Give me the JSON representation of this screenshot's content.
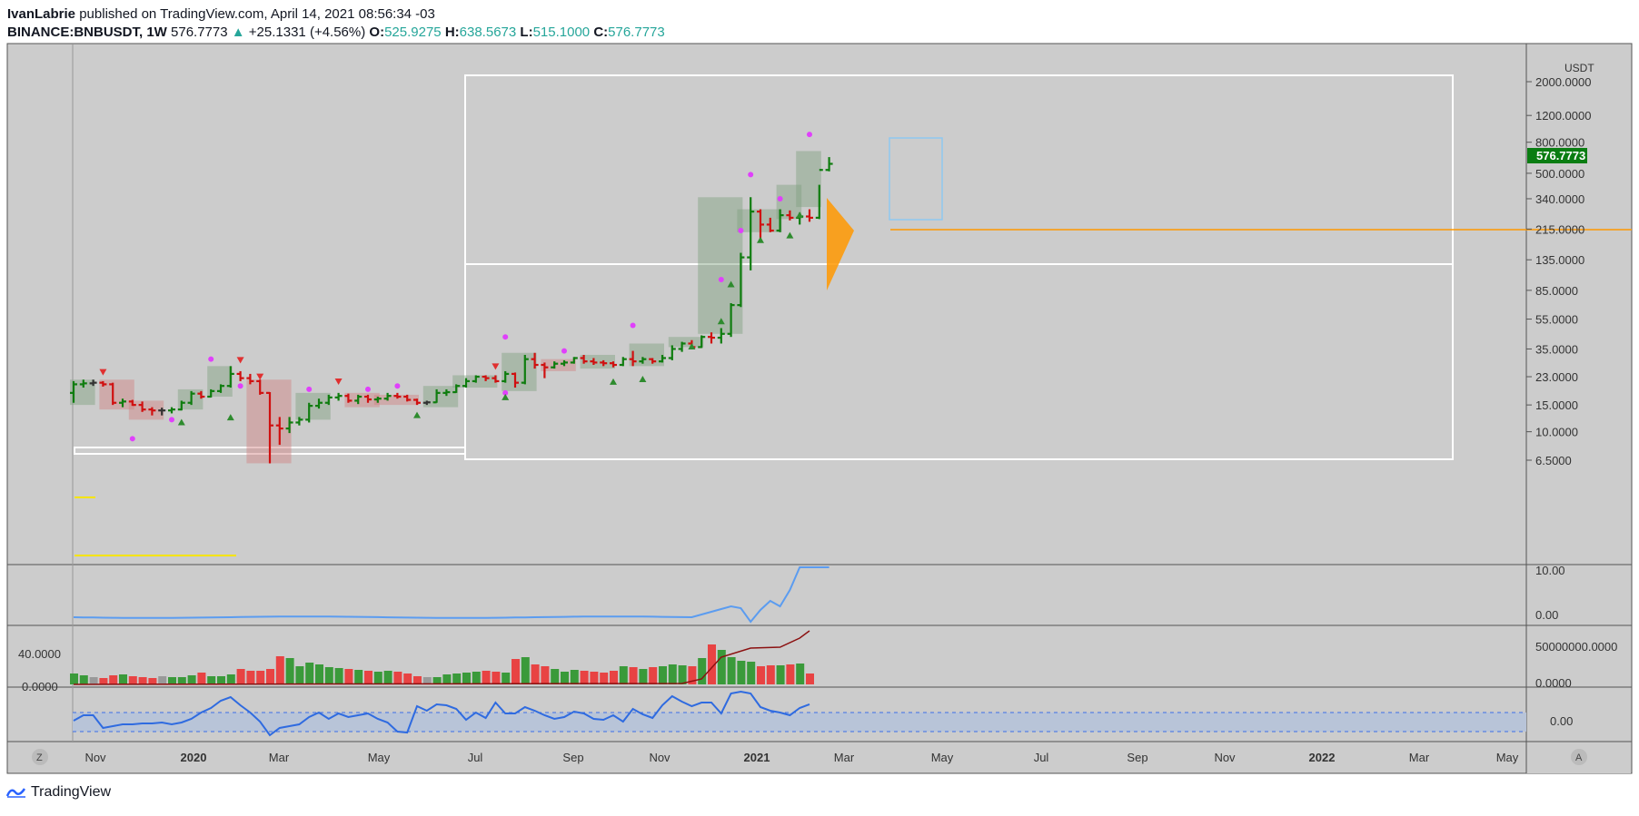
{
  "header": {
    "author": "IvanLabrie",
    "published_text": "published on TradingView.com, April 14, 2021 08:56:34 -03",
    "symbol": "BINANCE:BNBUSDT, 1W",
    "price": "576.7773",
    "change_icon": "up-triangle-icon",
    "change": "+25.1331 (+4.56%)",
    "o_label": "O:",
    "o_value": "525.9275",
    "h_label": "H:",
    "h_value": "638.5673",
    "l_label": "L:",
    "l_value": "515.1000",
    "c_label": "C:",
    "c_value": "576.7773"
  },
  "colors": {
    "up": "#0f7d0f",
    "down": "#d01010",
    "neutral": "#333333",
    "background": "#cccccc",
    "accent": "#ff9800",
    "indicator_line": "#5b9cf0",
    "dot": "#e040fb",
    "badge": "#0a7d12"
  },
  "price_axis": {
    "currency": "USDT",
    "labels": [
      "2000.0000",
      "1200.0000",
      "800.0000",
      "500.0000",
      "340.0000",
      "215.0000",
      "135.0000",
      "85.0000",
      "55.0000",
      "35.0000",
      "23.0000",
      "15.0000",
      "10.0000",
      "6.5000"
    ],
    "last_price": "576.7773"
  },
  "panes": {
    "pane1_labels": [
      "10.00",
      "0.00"
    ],
    "pane2_left_label": "40.0000",
    "pane2_left_label_2": "0.0000",
    "pane2_labels": [
      "50000000.0000",
      "0.0000"
    ],
    "pane3_labels": [
      "0.00"
    ]
  },
  "time_axis": {
    "labels": [
      "Nov",
      "2020",
      "Mar",
      "May",
      "Jul",
      "Sep",
      "Nov",
      "2021",
      "Mar",
      "May",
      "Jul",
      "Sep",
      "Nov",
      "2022",
      "Mar",
      "May"
    ],
    "left_button": "Z",
    "right_button": "A"
  },
  "footer": {
    "brand": "TradingView",
    "logo_icon": "tradingview-logo-icon"
  },
  "chart_data": {
    "type": "ohlc",
    "symbol": "BINANCE:BNBUSDT",
    "interval": "1W",
    "y_scale": "log",
    "ylim": [
      5.5,
      2300
    ],
    "time_range": [
      "2019-10-21",
      "2022-05-23"
    ],
    "ohlc_approx": [
      {
        "t": "2019-10-21",
        "o": 18.0,
        "h": 21.5,
        "l": 15.5,
        "c": 20.5
      },
      {
        "t": "2019-10-28",
        "o": 20.5,
        "h": 22.0,
        "l": 19.5,
        "c": 20.8
      },
      {
        "t": "2019-11-04",
        "o": 20.8,
        "h": 22.0,
        "l": 20.0,
        "c": 21.0
      },
      {
        "t": "2019-11-11",
        "o": 21.0,
        "h": 21.5,
        "l": 19.8,
        "c": 20.5
      },
      {
        "t": "2019-11-18",
        "o": 20.5,
        "h": 21.0,
        "l": 15.0,
        "c": 15.5
      },
      {
        "t": "2019-11-25",
        "o": 15.5,
        "h": 16.5,
        "l": 14.5,
        "c": 15.8
      },
      {
        "t": "2019-12-02",
        "o": 15.8,
        "h": 16.2,
        "l": 14.8,
        "c": 15.0
      },
      {
        "t": "2019-12-09",
        "o": 15.0,
        "h": 15.8,
        "l": 13.5,
        "c": 14.0
      },
      {
        "t": "2019-12-16",
        "o": 14.0,
        "h": 14.5,
        "l": 12.8,
        "c": 13.8
      },
      {
        "t": "2019-12-23",
        "o": 13.8,
        "h": 14.4,
        "l": 12.8,
        "c": 13.8
      },
      {
        "t": "2019-12-30",
        "o": 13.8,
        "h": 14.5,
        "l": 13.2,
        "c": 14.0
      },
      {
        "t": "2020-01-06",
        "o": 14.0,
        "h": 16.0,
        "l": 13.8,
        "c": 15.5
      },
      {
        "t": "2020-01-13",
        "o": 15.5,
        "h": 18.5,
        "l": 15.0,
        "c": 17.8
      },
      {
        "t": "2020-01-20",
        "o": 17.8,
        "h": 18.5,
        "l": 16.5,
        "c": 17.0
      },
      {
        "t": "2020-01-27",
        "o": 17.0,
        "h": 19.0,
        "l": 16.8,
        "c": 18.5
      },
      {
        "t": "2020-02-03",
        "o": 18.5,
        "h": 20.5,
        "l": 18.0,
        "c": 20.0
      },
      {
        "t": "2020-02-10",
        "o": 20.0,
        "h": 27.0,
        "l": 19.5,
        "c": 24.0
      },
      {
        "t": "2020-02-17",
        "o": 24.0,
        "h": 25.0,
        "l": 21.5,
        "c": 22.5
      },
      {
        "t": "2020-02-24",
        "o": 22.5,
        "h": 24.0,
        "l": 20.5,
        "c": 21.5
      },
      {
        "t": "2020-03-02",
        "o": 21.5,
        "h": 22.0,
        "l": 17.5,
        "c": 18.0
      },
      {
        "t": "2020-03-09",
        "o": 18.0,
        "h": 18.2,
        "l": 6.2,
        "c": 11.0
      },
      {
        "t": "2020-03-16",
        "o": 11.0,
        "h": 12.5,
        "l": 8.2,
        "c": 10.5
      },
      {
        "t": "2020-03-23",
        "o": 10.5,
        "h": 12.5,
        "l": 9.8,
        "c": 11.5
      },
      {
        "t": "2020-03-30",
        "o": 11.5,
        "h": 12.5,
        "l": 11.0,
        "c": 12.0
      },
      {
        "t": "2020-04-06",
        "o": 12.0,
        "h": 15.5,
        "l": 11.5,
        "c": 14.8
      },
      {
        "t": "2020-04-13",
        "o": 14.8,
        "h": 16.5,
        "l": 14.2,
        "c": 15.5
      },
      {
        "t": "2020-04-20",
        "o": 15.5,
        "h": 17.5,
        "l": 15.0,
        "c": 16.8
      },
      {
        "t": "2020-04-27",
        "o": 16.8,
        "h": 18.0,
        "l": 16.0,
        "c": 17.2
      },
      {
        "t": "2020-05-04",
        "o": 17.2,
        "h": 17.8,
        "l": 15.5,
        "c": 16.0
      },
      {
        "t": "2020-05-11",
        "o": 16.0,
        "h": 17.5,
        "l": 15.2,
        "c": 17.0
      },
      {
        "t": "2020-05-18",
        "o": 17.0,
        "h": 17.5,
        "l": 15.5,
        "c": 16.3
      },
      {
        "t": "2020-05-25",
        "o": 16.3,
        "h": 17.0,
        "l": 15.5,
        "c": 16.5
      },
      {
        "t": "2020-06-01",
        "o": 16.5,
        "h": 18.0,
        "l": 16.0,
        "c": 17.2
      },
      {
        "t": "2020-06-08",
        "o": 17.2,
        "h": 18.0,
        "l": 16.5,
        "c": 17.0
      },
      {
        "t": "2020-06-15",
        "o": 17.0,
        "h": 17.5,
        "l": 15.8,
        "c": 16.2
      },
      {
        "t": "2020-06-22",
        "o": 16.2,
        "h": 16.5,
        "l": 15.0,
        "c": 15.5
      },
      {
        "t": "2020-06-29",
        "o": 15.5,
        "h": 16.0,
        "l": 15.0,
        "c": 15.6
      },
      {
        "t": "2020-07-06",
        "o": 15.6,
        "h": 19.0,
        "l": 15.5,
        "c": 18.0
      },
      {
        "t": "2020-07-13",
        "o": 18.0,
        "h": 19.0,
        "l": 17.2,
        "c": 18.2
      },
      {
        "t": "2020-07-20",
        "o": 18.2,
        "h": 20.5,
        "l": 18.0,
        "c": 20.0
      },
      {
        "t": "2020-07-27",
        "o": 20.0,
        "h": 22.5,
        "l": 19.5,
        "c": 21.5
      },
      {
        "t": "2020-08-03",
        "o": 21.5,
        "h": 23.5,
        "l": 21.0,
        "c": 23.0
      },
      {
        "t": "2020-08-10",
        "o": 23.0,
        "h": 23.5,
        "l": 21.5,
        "c": 22.5
      },
      {
        "t": "2020-08-17",
        "o": 22.5,
        "h": 23.5,
        "l": 21.0,
        "c": 21.5
      },
      {
        "t": "2020-08-24",
        "o": 21.5,
        "h": 25.0,
        "l": 21.0,
        "c": 24.0
      },
      {
        "t": "2020-08-31",
        "o": 24.0,
        "h": 24.5,
        "l": 19.5,
        "c": 21.0
      },
      {
        "t": "2020-09-07",
        "o": 21.0,
        "h": 32.0,
        "l": 20.5,
        "c": 30.0
      },
      {
        "t": "2020-09-14",
        "o": 30.0,
        "h": 33.0,
        "l": 26.0,
        "c": 27.5
      },
      {
        "t": "2020-09-21",
        "o": 27.5,
        "h": 28.5,
        "l": 22.5,
        "c": 26.5
      },
      {
        "t": "2020-09-28",
        "o": 26.5,
        "h": 29.0,
        "l": 26.0,
        "c": 28.0
      },
      {
        "t": "2020-10-05",
        "o": 28.0,
        "h": 29.5,
        "l": 27.0,
        "c": 28.5
      },
      {
        "t": "2020-10-12",
        "o": 28.5,
        "h": 31.0,
        "l": 28.0,
        "c": 30.5
      },
      {
        "t": "2020-10-19",
        "o": 30.5,
        "h": 32.0,
        "l": 28.0,
        "c": 29.0
      },
      {
        "t": "2020-10-26",
        "o": 29.0,
        "h": 30.5,
        "l": 27.5,
        "c": 28.5
      },
      {
        "t": "2020-11-02",
        "o": 28.5,
        "h": 29.5,
        "l": 27.0,
        "c": 28.2
      },
      {
        "t": "2020-11-09",
        "o": 28.2,
        "h": 29.0,
        "l": 26.5,
        "c": 27.5
      },
      {
        "t": "2020-11-16",
        "o": 27.5,
        "h": 31.0,
        "l": 27.0,
        "c": 30.0
      },
      {
        "t": "2020-11-23",
        "o": 30.0,
        "h": 34.0,
        "l": 27.0,
        "c": 29.0
      },
      {
        "t": "2020-11-30",
        "o": 29.0,
        "h": 31.0,
        "l": 28.0,
        "c": 30.0
      },
      {
        "t": "2020-12-07",
        "o": 30.0,
        "h": 30.5,
        "l": 28.0,
        "c": 29.0
      },
      {
        "t": "2020-12-14",
        "o": 29.0,
        "h": 32.0,
        "l": 28.5,
        "c": 30.5
      },
      {
        "t": "2020-12-21",
        "o": 30.5,
        "h": 37.0,
        "l": 29.5,
        "c": 35.0
      },
      {
        "t": "2020-12-28",
        "o": 35.0,
        "h": 39.0,
        "l": 33.5,
        "c": 38.0
      },
      {
        "t": "2021-01-04",
        "o": 38.0,
        "h": 40.0,
        "l": 35.0,
        "c": 36.0
      },
      {
        "t": "2021-01-11",
        "o": 36.0,
        "h": 43.0,
        "l": 35.5,
        "c": 42.0
      },
      {
        "t": "2021-01-18",
        "o": 42.0,
        "h": 45.0,
        "l": 38.0,
        "c": 41.5
      },
      {
        "t": "2021-01-25",
        "o": 41.5,
        "h": 48.0,
        "l": 38.0,
        "c": 44.0
      },
      {
        "t": "2021-02-01",
        "o": 44.0,
        "h": 70.0,
        "l": 42.0,
        "c": 68.0
      },
      {
        "t": "2021-02-08",
        "o": 68.0,
        "h": 150.0,
        "l": 66.0,
        "c": 140.0
      },
      {
        "t": "2021-02-15",
        "o": 140.0,
        "h": 348.0,
        "l": 115.0,
        "c": 280.0
      },
      {
        "t": "2021-02-22",
        "o": 280.0,
        "h": 290.0,
        "l": 180.0,
        "c": 230.0
      },
      {
        "t": "2021-03-01",
        "o": 230.0,
        "h": 255.0,
        "l": 205.0,
        "c": 210.0
      },
      {
        "t": "2021-03-08",
        "o": 210.0,
        "h": 290.0,
        "l": 205.0,
        "c": 265.0
      },
      {
        "t": "2021-03-15",
        "o": 265.0,
        "h": 285.0,
        "l": 245.0,
        "c": 255.0
      },
      {
        "t": "2021-03-22",
        "o": 255.0,
        "h": 275.0,
        "l": 230.0,
        "c": 260.0
      },
      {
        "t": "2021-03-29",
        "o": 260.0,
        "h": 290.0,
        "l": 240.0,
        "c": 255.0
      },
      {
        "t": "2021-04-05",
        "o": 255.0,
        "h": 420.0,
        "l": 250.0,
        "c": 526.0
      },
      {
        "t": "2021-04-12",
        "o": 525.9275,
        "h": 638.5673,
        "l": 515.1,
        "c": 576.7773
      }
    ],
    "horizontal_line": 232,
    "volume_ylim_note": "volume pane scale 0 to 50,000,000+"
  }
}
